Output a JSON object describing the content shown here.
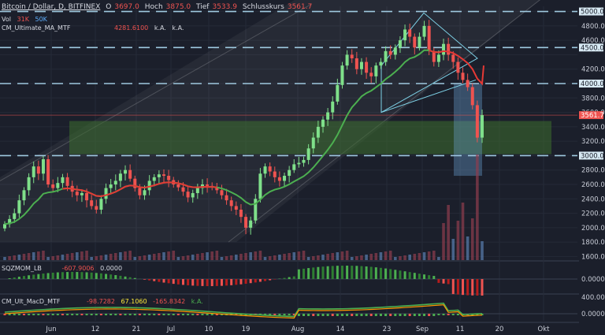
{
  "header": {
    "symbol_title": "Bitcoin / Dollar, D, BITFINEX",
    "open_label": "O",
    "open_value": "3697.0",
    "high_label": "Hoch",
    "high_value": "3875.0",
    "low_label": "Tief",
    "low_value": "3533.9",
    "close_label": "Schlusskurs",
    "close_value": "3561.7"
  },
  "vol_row": {
    "label": "Vol",
    "v1": "31K",
    "v2": "50K"
  },
  "ma_row": {
    "label": "CM_Ultimate_MA_MTF",
    "value": "4281.6100",
    "na1": "k.A.",
    "na2": "k.A."
  },
  "sqz_row": {
    "label": "SQZMOM_LB",
    "v1": "-607.9006",
    "v2": "0.0000"
  },
  "macd_row": {
    "label": "CM_Ult_MacD_MTF",
    "v1": "-98.7282",
    "v2": "67.1060",
    "v3": "-165.8342",
    "v4": "k.A."
  },
  "colors": {
    "background": "#1b1f2b",
    "up": "#7fe08a",
    "down": "#ef5350",
    "ma_green": "#4caf50",
    "ma_red": "#e53935",
    "levels": "#9fc9e0",
    "zone": "#3c6e2e",
    "axis_text": "#c8ccd6"
  },
  "chart_data": {
    "type": "candlestick",
    "x_labels": [
      "Jun",
      "12",
      "21",
      "Jul",
      "10",
      "19",
      "Aug",
      "14",
      "23",
      "Sep",
      "11",
      "20",
      "Okt"
    ],
    "y_ticks": [
      "4800.0",
      "4600.0",
      "4200.0",
      "3800.0",
      "3600.0",
      "3400.0",
      "3200.0",
      "2800.0",
      "2600.0",
      "2400.0",
      "2200.0",
      "2000.0",
      "1800.0",
      "1600.0"
    ],
    "levels": [
      "5000.0",
      "4500.0",
      "4000.0",
      "3000.0"
    ],
    "current_price": "3561.7",
    "lower1_ticks": [
      "0.0000"
    ],
    "lower2_ticks": [
      "400.0000",
      "0.0000"
    ],
    "close_series": [
      2050,
      2120,
      2200,
      2380,
      2520,
      2700,
      2850,
      2750,
      2950,
      2600,
      2550,
      2620,
      2700,
      2580,
      2500,
      2450,
      2480,
      2380,
      2300,
      2250,
      2400,
      2550,
      2600,
      2650,
      2750,
      2800,
      2680,
      2550,
      2450,
      2520,
      2650,
      2700,
      2740,
      2720,
      2660,
      2600,
      2560,
      2500,
      2420,
      2480,
      2550,
      2600,
      2580,
      2560,
      2520,
      2450,
      2380,
      2300,
      2250,
      2150,
      2000,
      2100,
      2400,
      2750,
      2850,
      2780,
      2700,
      2650,
      2720,
      2800,
      2880,
      2900,
      2940,
      3100,
      3250,
      3400,
      3500,
      3600,
      3750,
      3980,
      4250,
      4400,
      4350,
      4200,
      4300,
      4150,
      4100,
      4250,
      4300,
      4450,
      4400,
      4500,
      4600,
      4750,
      4650,
      4500,
      4650,
      4800,
      4450,
      4300,
      4400,
      4550,
      4400,
      4300,
      4150,
      4050,
      3950,
      3700,
      3250,
      3561.7
    ]
  }
}
